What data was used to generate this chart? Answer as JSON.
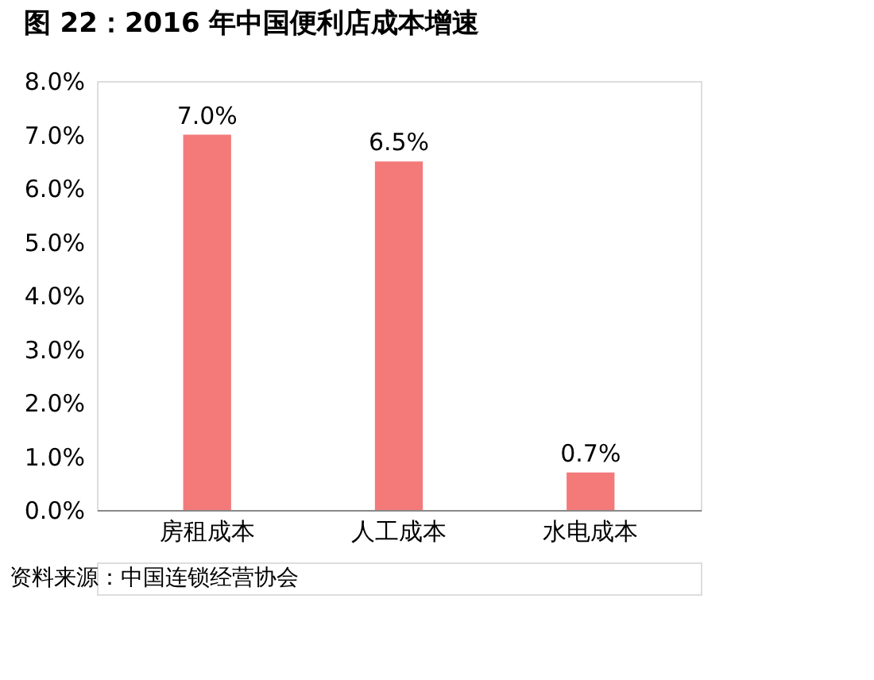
{
  "chart_data": {
    "type": "bar",
    "title": "图 22：2016 年中国便利店成本增速",
    "categories": [
      "房租成本",
      "人工成本",
      "水电成本"
    ],
    "values": [
      7.0,
      6.5,
      0.7
    ],
    "value_labels": [
      "7.0%",
      "6.5%",
      "0.7%"
    ],
    "color": "#f47a7a",
    "ylim": [
      0,
      8
    ],
    "yticks": [
      {
        "value": 0,
        "label": "0.0%"
      },
      {
        "value": 1,
        "label": "1.0%"
      },
      {
        "value": 2,
        "label": "2.0%"
      },
      {
        "value": 3,
        "label": "3.0%"
      },
      {
        "value": 4,
        "label": "4.0%"
      },
      {
        "value": 5,
        "label": "5.0%"
      },
      {
        "value": 6,
        "label": "6.0%"
      },
      {
        "value": 7,
        "label": "7.0%"
      },
      {
        "value": 8,
        "label": "8.0%"
      }
    ],
    "grid": false,
    "annotations": [
      "资料来源：中国连锁经营协会"
    ]
  }
}
